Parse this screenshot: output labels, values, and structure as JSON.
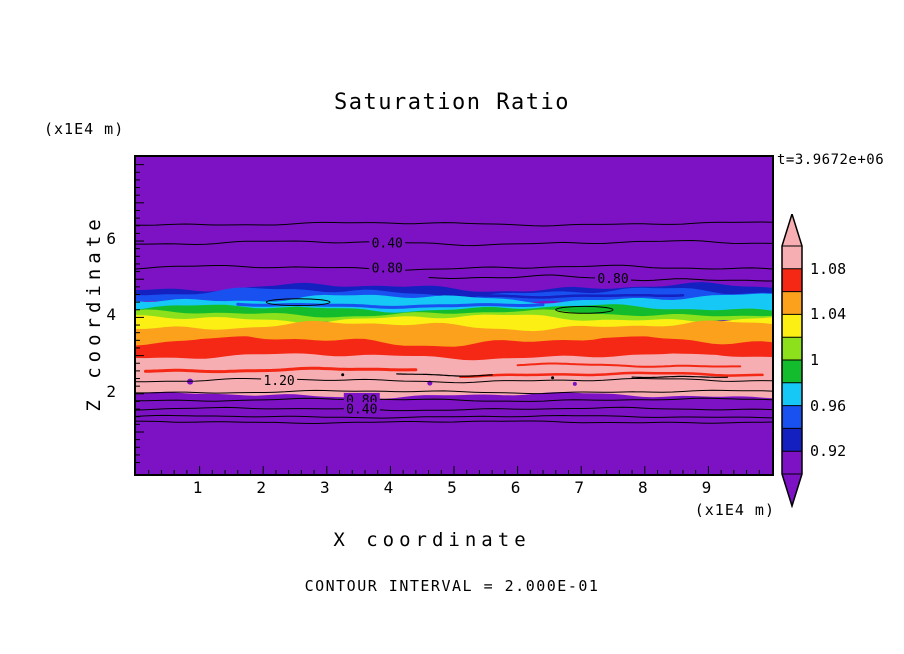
{
  "chart_data": {
    "type": "heatmap",
    "subtype": "filled-contour",
    "title": "Saturation Ratio",
    "xlabel": "X coordinate",
    "zlabel": "Z coordinate",
    "x_unit": "(x1E4 m)",
    "z_unit": "(x1E4 m)",
    "time_label": "t=3.9672e+06",
    "contour_interval_text": "CONTOUR INTERVAL = 2.000E-01",
    "contour_interval": 0.2,
    "x_range": [
      0,
      10
    ],
    "z_range": [
      -0.1,
      8.2
    ],
    "x_ticks": [
      1,
      2,
      3,
      4,
      5,
      6,
      7,
      8,
      9
    ],
    "z_ticks": [
      2,
      4,
      6
    ],
    "x_minor_tick": 0.2,
    "z_minor_tick": 0.2,
    "x_major_tick": 1,
    "z_major_tick": 1,
    "grid": false,
    "background_band": "purple",
    "palette": {
      "purple": "#7D12C4",
      "navy": "#1420C0",
      "blue": "#1950F0",
      "cyan": "#16C8F5",
      "green": "#13BC2C",
      "chartreuse": "#8CE01C",
      "yellow": "#FBEF14",
      "orange": "#FBA11C",
      "red": "#F42814",
      "pink": "#F7AEB2"
    },
    "bands": [
      {
        "color": "navy",
        "z_top": 4.78,
        "z_bottom": 4.5,
        "amp": 3,
        "phase": 1.3
      },
      {
        "color": "blue",
        "z_top": 4.66,
        "z_bottom": 4.3,
        "amp": 3.2,
        "phase": 2.1
      },
      {
        "color": "cyan",
        "z_top": 4.5,
        "z_bottom": 4.12,
        "amp": 3,
        "phase": 0.4
      },
      {
        "color": "green",
        "z_top": 4.24,
        "z_bottom": 3.96,
        "amp": 2.5,
        "phase": 3.2
      },
      {
        "color": "chartreuse",
        "z_top": 4.1,
        "z_bottom": 3.84,
        "amp": 2.4,
        "phase": 4.4
      },
      {
        "color": "yellow",
        "z_top": 3.98,
        "z_bottom": 3.58,
        "amp": 2.8,
        "phase": 5.0
      },
      {
        "color": "orange",
        "z_top": 3.78,
        "z_bottom": 3.18,
        "amp": 3.2,
        "phase": 0.9
      },
      {
        "color": "red",
        "z_top": 3.38,
        "z_bottom": 2.78,
        "amp": 3.8,
        "phase": 2.6
      },
      {
        "color": "pink",
        "z_top": 2.98,
        "z_bottom": 1.96,
        "amp": 2.2,
        "phase": 1.7
      }
    ],
    "streaks": [
      {
        "color": "blue",
        "z": 4.32,
        "x1": 1.6,
        "x2": 6.4,
        "w": 3,
        "phase": 3.3
      },
      {
        "color": "navy",
        "z": 4.58,
        "x1": 5.4,
        "x2": 8.6,
        "w": 2.5,
        "phase": 0.6
      },
      {
        "color": "orange",
        "z": 3.5,
        "x1": 0.3,
        "x2": 9.7,
        "w": 2.5,
        "phase": 1.9
      },
      {
        "color": "red",
        "z": 3.1,
        "x1": 0.2,
        "x2": 9.8,
        "w": 4,
        "phase": 2.8
      },
      {
        "color": "red",
        "z": 2.62,
        "x1": 0.15,
        "x2": 4.4,
        "w": 3,
        "phase": 0.9
      },
      {
        "color": "red",
        "z": 2.5,
        "x1": 5.1,
        "x2": 9.85,
        "w": 2.5,
        "phase": 2.2
      },
      {
        "color": "red",
        "z": 2.74,
        "x1": 6.0,
        "x2": 9.5,
        "w": 2,
        "phase": 4.0
      },
      {
        "color": "black",
        "z": 2.52,
        "x1": 4.1,
        "x2": 5.6,
        "w": 1.2,
        "phase": 2.0
      },
      {
        "color": "black",
        "z": 2.46,
        "x1": 7.8,
        "x2": 9.3,
        "w": 1.2,
        "phase": 4.1
      }
    ],
    "dots": [
      {
        "color": "purple",
        "x": 0.85,
        "z": 2.32,
        "r": 3
      },
      {
        "color": "purple",
        "x": 4.62,
        "z": 2.28,
        "r": 2.5
      },
      {
        "color": "purple",
        "x": 6.9,
        "z": 2.26,
        "r": 2
      },
      {
        "color": "black",
        "x": 3.25,
        "z": 2.5,
        "r": 1.5
      },
      {
        "color": "black",
        "x": 6.55,
        "z": 2.42,
        "r": 1.5
      }
    ],
    "closed_contours": [
      {
        "x": 2.55,
        "z": 4.4,
        "rx": 0.5,
        "ry": 0.09
      },
      {
        "x": 7.05,
        "z": 4.2,
        "rx": 0.45,
        "ry": 0.09
      }
    ],
    "contour_lines": [
      {
        "z": 6.45,
        "amp": 1.2,
        "phase": 0.5
      },
      {
        "z": 5.95,
        "amp": 1.5,
        "phase": 1.8,
        "label": "0.40",
        "label_x": 3.95,
        "label_bg": "purple"
      },
      {
        "z": 5.3,
        "amp": 1.5,
        "phase": 3.1,
        "label": "0.80",
        "label_x": 3.95,
        "label_bg": "purple"
      },
      {
        "z": 5.02,
        "amp": 2,
        "phase": 4.2,
        "x1": 4.6,
        "label": "0.80",
        "label_x": 7.5,
        "label_bg": "purple"
      },
      {
        "z": 2.35,
        "amp": 1.3,
        "phase": 2.2,
        "label": "1.20",
        "label_x": 2.25,
        "label_bg": "pink"
      },
      {
        "z": 2.05,
        "amp": 1,
        "phase": 0.8
      },
      {
        "z": 1.84,
        "amp": 1,
        "phase": 1.1,
        "label": "0.80",
        "label_x": 3.55,
        "label_bg": "purple"
      },
      {
        "z": 1.6,
        "amp": 1,
        "phase": 2.9,
        "label": "0.40",
        "label_x": 3.55,
        "label_bg": "purple"
      },
      {
        "z": 1.4,
        "amp": 0.8,
        "phase": 3.7
      },
      {
        "z": 1.26,
        "amp": 0.8,
        "phase": 4.9
      }
    ],
    "colorbar": {
      "labels": [
        "1.08",
        "1.04",
        "1",
        "0.96",
        "0.92"
      ],
      "label_boundaries": [
        1,
        3,
        5,
        7,
        9
      ],
      "segment_colors": [
        "pink",
        "red",
        "orange",
        "yellow",
        "chartreuse",
        "green",
        "cyan",
        "blue",
        "navy",
        "purple"
      ],
      "fill_level_step": 0.02,
      "boundary_values_top_to_bottom": [
        1.1,
        1.08,
        1.06,
        1.04,
        1.02,
        1.0,
        0.98,
        0.96,
        0.94,
        0.92,
        0.9
      ]
    }
  }
}
